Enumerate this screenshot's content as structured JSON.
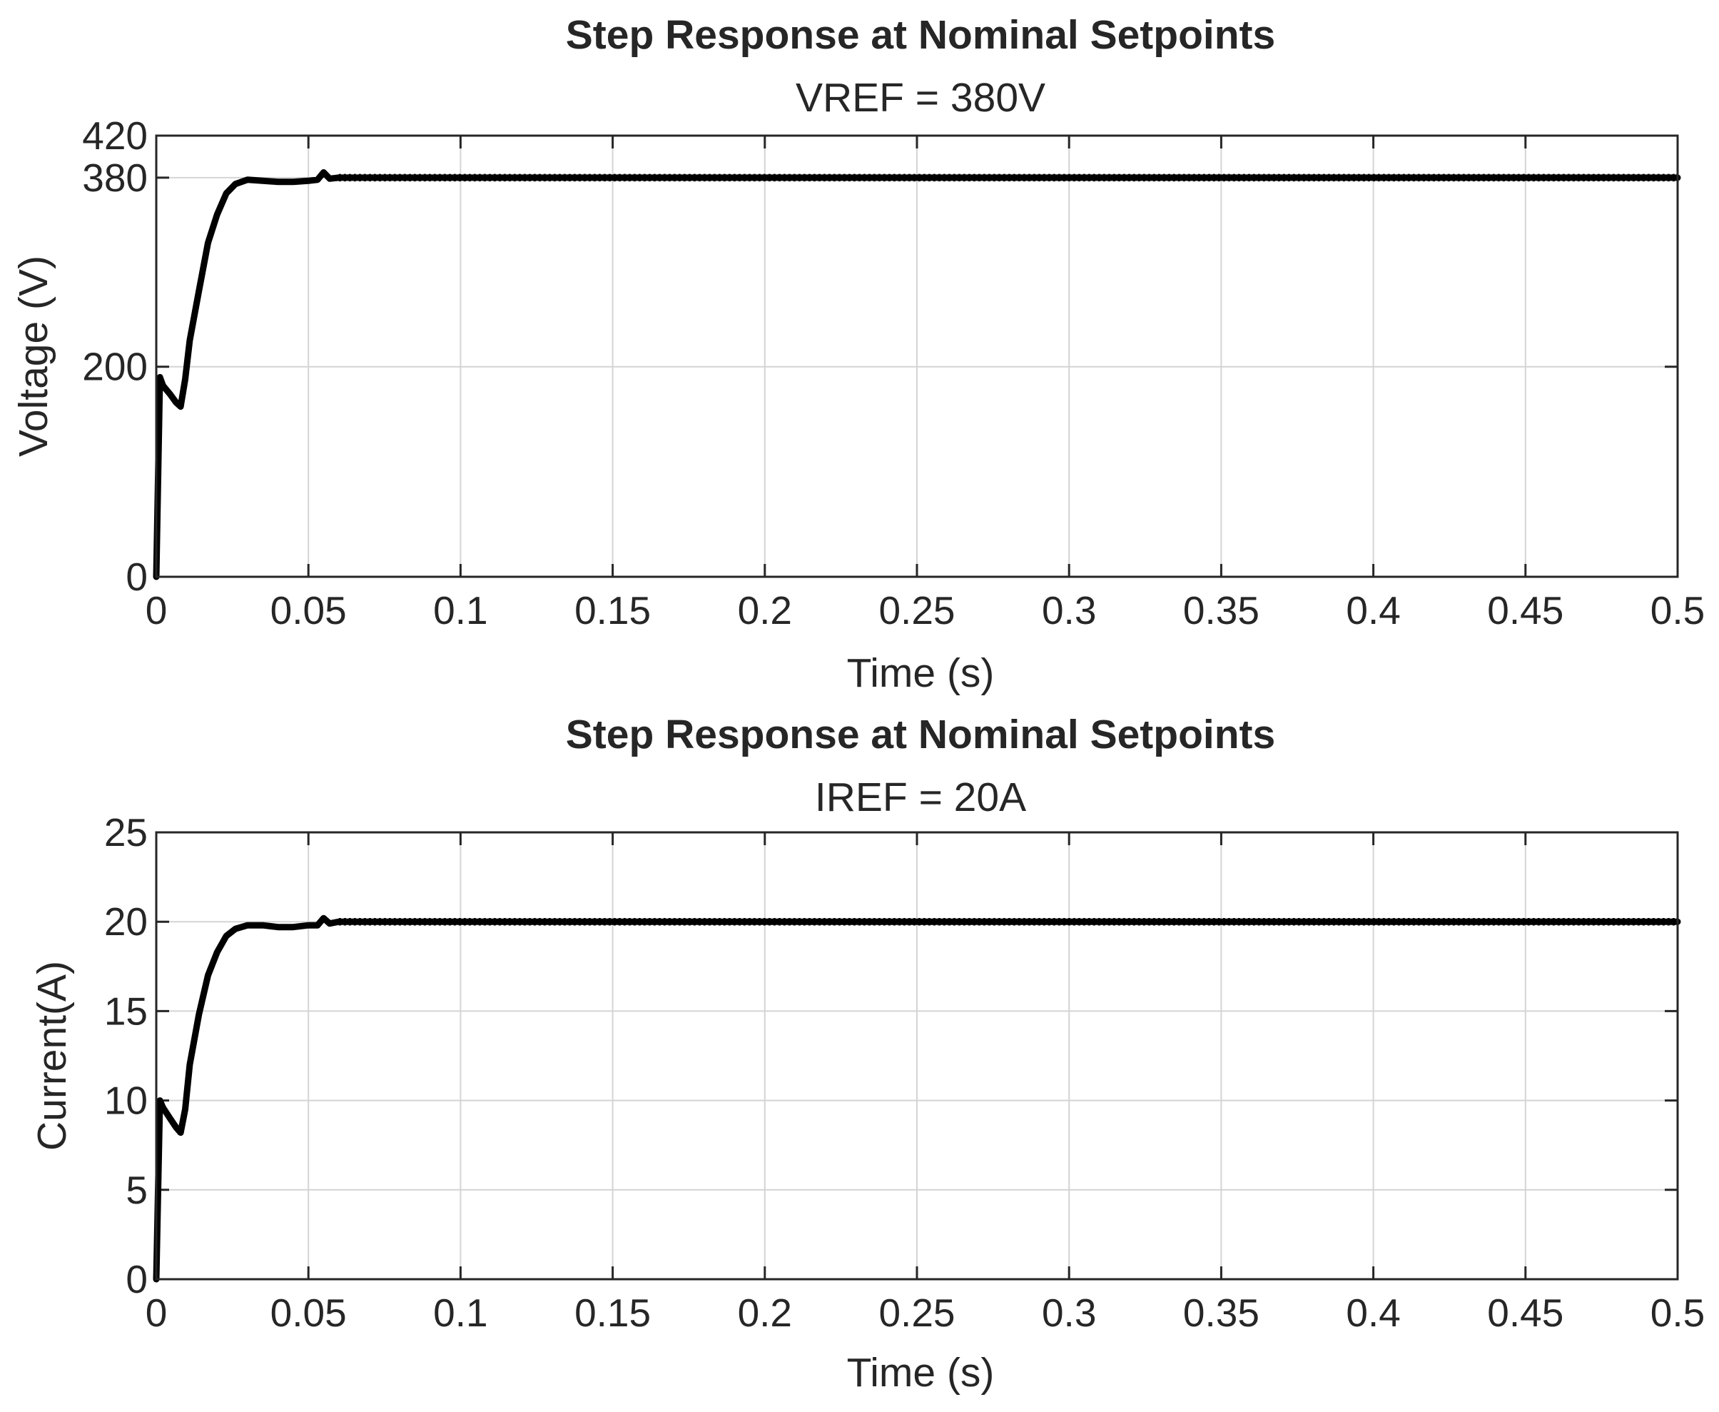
{
  "chart_data": [
    {
      "type": "line",
      "title": "Step Response at Nominal Setpoints",
      "subtitle": "VREF = 380V",
      "xlabel": "Time (s)",
      "ylabel": "Voltage (V)",
      "xlim": [
        0,
        0.5
      ],
      "ylim": [
        0,
        420
      ],
      "xticks": [
        0,
        0.05,
        0.1,
        0.15,
        0.2,
        0.25,
        0.3,
        0.35,
        0.4,
        0.45,
        0.5
      ],
      "xtick_labels": [
        "0",
        "0.05",
        "0.1",
        "0.15",
        "0.2",
        "0.25",
        "0.3",
        "0.35",
        "0.4",
        "0.45",
        "0.5"
      ],
      "yticks": [
        0,
        200,
        380,
        420
      ],
      "ytick_labels": [
        "0",
        "200",
        "380",
        "420"
      ],
      "grid": true,
      "series": [
        {
          "color": "#000000",
          "x": [
            0,
            0.0012,
            0.0022,
            0.0045,
            0.0065,
            0.008,
            0.0095,
            0.011,
            0.014,
            0.017,
            0.02,
            0.023,
            0.026,
            0.03,
            0.035,
            0.04,
            0.045,
            0.05,
            0.053,
            0.055,
            0.057,
            0.06,
            0.07,
            0.08,
            0.1,
            0.2,
            0.3,
            0.4,
            0.5
          ],
          "y": [
            0,
            190,
            182,
            174,
            166,
            162,
            188,
            225,
            272,
            318,
            345,
            365,
            374,
            378,
            377,
            376,
            376,
            377,
            378,
            385,
            379,
            380,
            380,
            380,
            380,
            380,
            380,
            380,
            380
          ]
        }
      ]
    },
    {
      "type": "line",
      "title": "Step Response at Nominal Setpoints",
      "subtitle": "IREF = 20A",
      "xlabel": "Time (s)",
      "ylabel": "Current(A)",
      "xlim": [
        0,
        0.5
      ],
      "ylim": [
        0,
        25
      ],
      "xticks": [
        0,
        0.05,
        0.1,
        0.15,
        0.2,
        0.25,
        0.3,
        0.35,
        0.4,
        0.45,
        0.5
      ],
      "xtick_labels": [
        "0",
        "0.05",
        "0.1",
        "0.15",
        "0.2",
        "0.25",
        "0.3",
        "0.35",
        "0.4",
        "0.45",
        "0.5"
      ],
      "yticks": [
        0,
        5,
        10,
        15,
        20,
        25
      ],
      "ytick_labels": [
        "0",
        "5",
        "10",
        "15",
        "20",
        "25"
      ],
      "grid": true,
      "series": [
        {
          "color": "#000000",
          "x": [
            0,
            0.0012,
            0.0022,
            0.0045,
            0.0065,
            0.008,
            0.0095,
            0.011,
            0.014,
            0.017,
            0.02,
            0.023,
            0.026,
            0.03,
            0.035,
            0.04,
            0.045,
            0.05,
            0.053,
            0.055,
            0.057,
            0.06,
            0.07,
            0.08,
            0.1,
            0.2,
            0.3,
            0.4,
            0.5
          ],
          "y": [
            0,
            10,
            9.6,
            9.0,
            8.5,
            8.2,
            9.5,
            12.0,
            14.8,
            17.0,
            18.3,
            19.2,
            19.6,
            19.8,
            19.8,
            19.7,
            19.7,
            19.8,
            19.8,
            20.2,
            19.9,
            20.0,
            20.0,
            20.0,
            20.0,
            20.0,
            20.0,
            20.0,
            20.0
          ]
        }
      ]
    }
  ]
}
